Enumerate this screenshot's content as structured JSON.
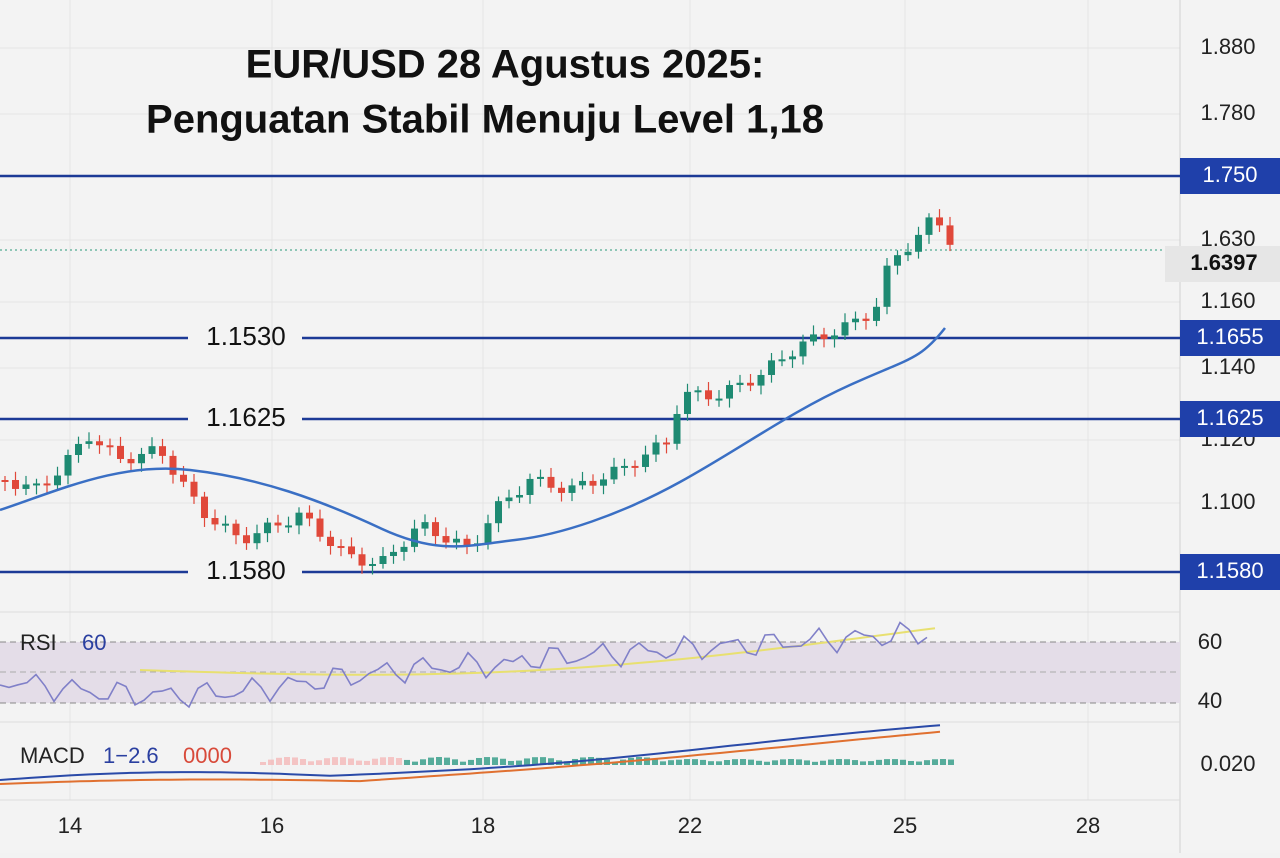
{
  "title": [
    "EUR/USD 28 Agustus  2025:",
    "Penguatan Stabil Menuju Level 1,18"
  ],
  "price_axis": [
    "1.880",
    "1.780",
    "1.630",
    "1.160",
    "1.140",
    "1.120",
    "1.100"
  ],
  "levels": [
    {
      "label": "1.750"
    },
    {
      "left_label": "1.1530",
      "label": "1.1655"
    },
    {
      "left_label": "1.1625",
      "label": "1.1625"
    },
    {
      "left_label": "1.1580",
      "label": "1.1580"
    }
  ],
  "current_price": "1.6397",
  "rsi": {
    "label": "RSI",
    "value": "60",
    "axis": [
      "60",
      "40"
    ]
  },
  "macd": {
    "label": "MACD",
    "params": "1−2.6",
    "value": "0000",
    "axis": "0.020"
  },
  "x_axis": [
    "14",
    "16",
    "18",
    "22",
    "25",
    "28"
  ]
}
